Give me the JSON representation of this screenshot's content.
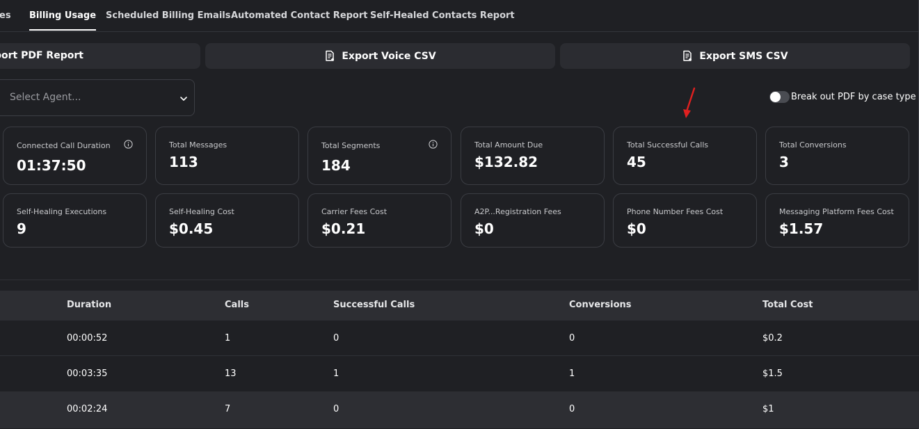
{
  "tabs": [
    {
      "label": "es",
      "active": false
    },
    {
      "label": "Billing Usage",
      "active": true
    },
    {
      "label": "Scheduled Billing Emails",
      "active": false
    },
    {
      "label": "Automated Contact Report",
      "active": false
    },
    {
      "label": "Self-Healed Contacts Report",
      "active": false
    }
  ],
  "exports": {
    "pdf_label": "port PDF Report",
    "voice_label": "Export Voice CSV",
    "sms_label": "Export SMS CSV"
  },
  "filters": {
    "agent_placeholder": "Select Agent...",
    "toggle_label": "Break out PDF by case type",
    "toggle_on": false
  },
  "stats_row1": [
    {
      "label": "Connected Call Duration",
      "value": "01:37:50",
      "info": true
    },
    {
      "label": "Total Messages",
      "value": "113",
      "info": false
    },
    {
      "label": "Total Segments",
      "value": "184",
      "info": true
    },
    {
      "label": "Total Amount Due",
      "value": "$132.82",
      "info": false
    },
    {
      "label": "Total Successful Calls",
      "value": "45",
      "info": false
    },
    {
      "label": "Total Conversions",
      "value": "3",
      "info": false
    }
  ],
  "stats_row2": [
    {
      "label": "Self-Healing Executions",
      "value": "9"
    },
    {
      "label": "Self-Healing Cost",
      "value": "$0.45"
    },
    {
      "label": "Carrier Fees Cost",
      "value": "$0.21"
    },
    {
      "label": "A2P...Registration Fees",
      "value": "$0"
    },
    {
      "label": "Phone Number Fees Cost",
      "value": "$0"
    },
    {
      "label": "Messaging Platform Fees Cost",
      "value": "$1.57"
    }
  ],
  "table": {
    "headers": {
      "duration": "Duration",
      "calls": "Calls",
      "successful": "Successful Calls",
      "conversions": "Conversions",
      "cost": "Total Cost"
    },
    "rows": [
      {
        "duration": "00:00:52",
        "calls": "1",
        "successful": "0",
        "conversions": "0",
        "cost": "$0.2"
      },
      {
        "duration": "00:03:35",
        "calls": "13",
        "successful": "1",
        "conversions": "1",
        "cost": "$1.5"
      },
      {
        "duration": "00:02:24",
        "calls": "7",
        "successful": "0",
        "conversions": "0",
        "cost": "$1"
      }
    ]
  },
  "colors": {
    "background": "#1f2024",
    "surface": "#2b2c31",
    "annotation": "#e02020"
  },
  "icons": {
    "export": "document-export-icon",
    "select": "chevron-down-icon",
    "info": "info-icon",
    "annotation": "red-arrow-annotation"
  }
}
